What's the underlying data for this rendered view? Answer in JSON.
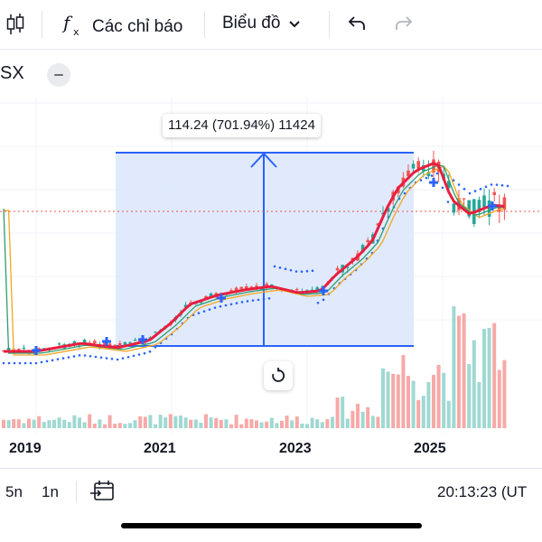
{
  "toolbar": {
    "chart_type_icon": "candlestick-icon",
    "indicators_icon": "function-fx-icon",
    "indicators_label": "Các chỉ báo",
    "chart_label": "Biểu đồ",
    "chart_dropdown_icon": "chevron-down-icon",
    "undo_icon": "undo-icon",
    "redo_icon": "redo-icon"
  },
  "legend": {
    "symbol": "SX",
    "collapse_icon": "minus-icon"
  },
  "measure": {
    "label": "114.24 (701.94%) 11424"
  },
  "reset": {
    "icon": "reset-rotate-icon"
  },
  "x_axis": {
    "ticks": [
      "2019",
      "2021",
      "2023",
      "2025"
    ]
  },
  "bottom_bar": {
    "ranges": [
      "5n",
      "1n"
    ],
    "goto_date_icon": "calendar-goto-icon",
    "clock": "20:13:23 (UT"
  },
  "colors": {
    "up": "#26a69a",
    "down": "#ef5350",
    "ma_fast": "#e91e3f",
    "measure_line": "#2962ff",
    "measure_fill": "#dbe6fb",
    "price_line": "#ef5350"
  }
}
